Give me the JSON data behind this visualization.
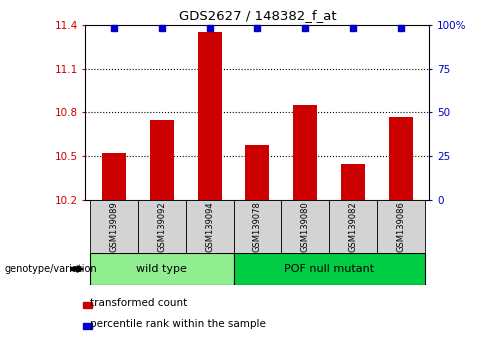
{
  "title": "GDS2627 / 148382_f_at",
  "samples": [
    "GSM139089",
    "GSM139092",
    "GSM139094",
    "GSM139078",
    "GSM139080",
    "GSM139082",
    "GSM139086"
  ],
  "transformed_counts": [
    10.52,
    10.75,
    11.35,
    10.58,
    10.85,
    10.45,
    10.77
  ],
  "ylim_left": [
    10.2,
    11.4
  ],
  "yticks_left": [
    10.2,
    10.5,
    10.8,
    11.1,
    11.4
  ],
  "yticks_right": [
    0,
    25,
    50,
    75,
    100
  ],
  "ytick_labels_right": [
    "0",
    "25",
    "50",
    "75",
    "100%"
  ],
  "bar_color": "#CC0000",
  "percentile_color": "#0000CC",
  "bar_bottom": 10.2,
  "bg_color": "#FFFFFF",
  "label_box_color": "#D3D3D3",
  "wt_color": "#90EE90",
  "pof_color": "#00CC44",
  "legend_red_label": "transformed count",
  "legend_blue_label": "percentile rank within the sample",
  "genotype_label": "genotype/variation",
  "left_ylabel_color": "#CC0000",
  "right_ylabel_color": "#0000CC",
  "wt_label": "wild type",
  "pof_label": "POF null mutant"
}
